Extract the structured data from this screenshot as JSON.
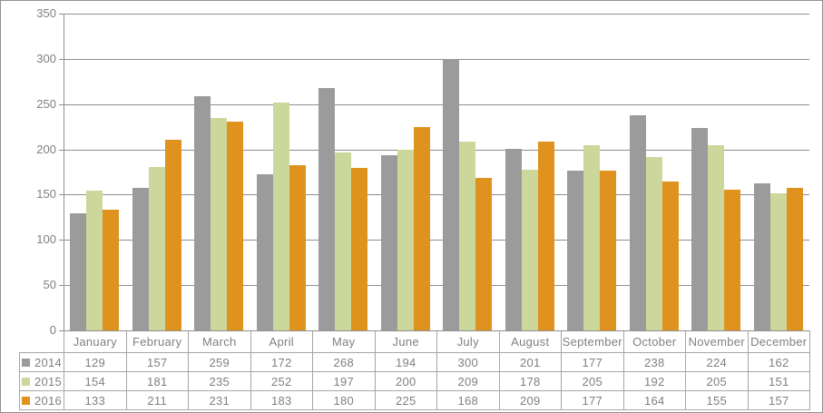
{
  "chart_data": {
    "type": "bar",
    "title": "",
    "xlabel": "",
    "ylabel": "",
    "categories": [
      "January",
      "February",
      "March",
      "April",
      "May",
      "June",
      "July",
      "August",
      "September",
      "October",
      "November",
      "December"
    ],
    "series": [
      {
        "name": "2014",
        "color": "#9b9b9b",
        "values": [
          129,
          157,
          259,
          172,
          268,
          194,
          300,
          201,
          177,
          238,
          224,
          162
        ]
      },
      {
        "name": "2015",
        "color": "#ccd79b",
        "values": [
          154,
          181,
          235,
          252,
          197,
          200,
          209,
          178,
          205,
          192,
          205,
          151
        ]
      },
      {
        "name": "2016",
        "color": "#e0921f",
        "values": [
          133,
          211,
          231,
          183,
          180,
          225,
          168,
          209,
          177,
          164,
          155,
          157
        ]
      }
    ],
    "ylim": [
      0,
      350
    ],
    "yticks": [
      0,
      50,
      100,
      150,
      200,
      250,
      300,
      350
    ],
    "grid": true,
    "legend_position": "data-table-left"
  },
  "colors": {
    "text": "#808080",
    "gridline": "#8f8f8f",
    "axis": "#8f8f8f",
    "table_border": "#a6a6a6",
    "chart_border": "#919191",
    "background": "#ffffff"
  }
}
